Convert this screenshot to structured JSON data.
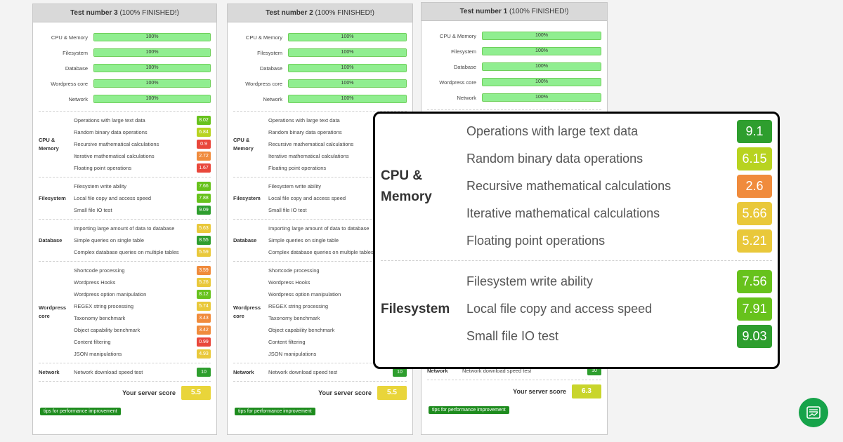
{
  "progress_labels": [
    "CPU & Memory",
    "Filesystem",
    "Database",
    "Wordpress core",
    "Network"
  ],
  "section_names": {
    "cpu": "CPU &\nMemory",
    "filesystem": "Filesystem",
    "database": "Database",
    "wordpress": "Wordpress\ncore",
    "network": "Network"
  },
  "item_labels": {
    "cpu": [
      "Operations with large text data",
      "Random binary data operations",
      "Recursive mathematical calculations",
      "Iterative mathematical calculations",
      "Floating point operations"
    ],
    "filesystem": [
      "Filesystem write ability",
      "Local file copy and access speed",
      "Small file IO test"
    ],
    "database": [
      "Importing large amount of data to database",
      "Simple queries on single table",
      "Complex database queries on multiple tables"
    ],
    "wordpress": [
      "Shortcode processing",
      "Wordpress Hooks",
      "Wordpress option manipulation",
      "REGEX string processing",
      "Taxonomy benchmark",
      "Object capability benchmark",
      "Content filtering",
      "JSON manipulations"
    ],
    "network": [
      "Network download speed test"
    ]
  },
  "score_label": "Your server score",
  "tips_label": "tips for performance improvement",
  "panels": [
    {
      "title": "Test number 3",
      "status": "(100% FINISHED!)",
      "progress": [
        "100%",
        "100%",
        "100%",
        "100%",
        "100%"
      ],
      "scores": {
        "cpu": [
          "8.02",
          "6.84",
          "0.9",
          "2.72",
          "1.67"
        ],
        "filesystem": [
          "7.66",
          "7.88",
          "9.09"
        ],
        "database": [
          "5.63",
          "8.55",
          "5.59"
        ],
        "wordpress": [
          "3.59",
          "5.26",
          "8.12",
          "5.74",
          "3.43",
          "3.42",
          "0.99",
          "4.93"
        ],
        "network": [
          "10"
        ]
      },
      "server_score": "5.5"
    },
    {
      "title": "Test number 2",
      "status": "(100% FINISHED!)",
      "progress": [
        "100%",
        "100%",
        "100%",
        "100%",
        "100%"
      ],
      "scores": {
        "cpu": [],
        "filesystem": [],
        "database": [],
        "wordpress": [],
        "network": [
          "10"
        ]
      },
      "server_score": "5.5"
    },
    {
      "title": "Test number 1",
      "status": "(100% FINISHED!)",
      "progress": [
        "100%",
        "100%",
        "100%",
        "100%",
        "100%"
      ],
      "scores": {
        "network": [
          "10"
        ]
      },
      "server_score": "6.3"
    }
  ],
  "zoom": {
    "cpu_label": "CPU &\nMemory",
    "cpu_items": [
      {
        "label": "Operations with large text data",
        "score": "9.1"
      },
      {
        "label": "Random binary data operations",
        "score": "6.15"
      },
      {
        "label": "Recursive mathematical calculations",
        "score": "2.6"
      },
      {
        "label": "Iterative mathematical calculations",
        "score": "5.66"
      },
      {
        "label": "Floating point operations",
        "score": "5.21"
      }
    ],
    "fs_label": "Filesystem",
    "fs_items": [
      {
        "label": "Filesystem write ability",
        "score": "7.56"
      },
      {
        "label": "Local file copy and access speed",
        "score": "7.91"
      },
      {
        "label": "Small file IO test",
        "score": "9.03"
      }
    ]
  },
  "colors": {
    "dark_green": "#2e9e2e",
    "green": "#67c21c",
    "yellow_green": "#b8d320",
    "yellow": "#e9c83a",
    "orange": "#f08b3c",
    "red": "#e9473b",
    "progress_fill": "#90ee90"
  },
  "icons": {
    "logo": "server-chart-icon"
  }
}
